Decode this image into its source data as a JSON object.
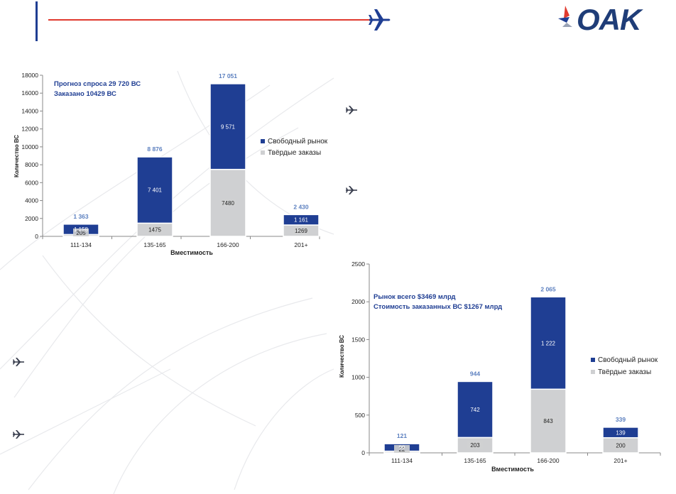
{
  "header": {
    "logo_text": "OAK"
  },
  "colors": {
    "free_market": "#1f3e93",
    "firm_orders": "#cfd0d2",
    "accent_line": "#e03a2e",
    "total_label": "#5b7fbf",
    "annotation": "#1f3e93",
    "plane": "#1f3e93"
  },
  "icons": [
    "airplane-icon",
    "oak-logo-icon",
    "bullet-airplane-icon"
  ],
  "chart_data": [
    {
      "type": "bar",
      "stacked": true,
      "categories": [
        "111-134",
        "135-165",
        "166-200",
        "201+"
      ],
      "series": [
        {
          "name": "Твёрдые заказы",
          "values": [
            205,
            1475,
            7480,
            1269
          ],
          "labels": [
            "205",
            "1475",
            "7480",
            "1269"
          ]
        },
        {
          "name": "Свободный рынок",
          "values": [
            1158,
            7401,
            9571,
            1161
          ],
          "labels": [
            "1 158",
            "7 401",
            "9 571",
            "1 161"
          ]
        }
      ],
      "totals": [
        "1 363",
        "8 876",
        "17 051",
        "2 430"
      ],
      "annotation": [
        "Прогноз спроса  29 720 ВС",
        "Заказано  10429 ВС"
      ],
      "xlabel": "Вместимость",
      "ylabel": "Количество ВС",
      "ylim": [
        0,
        18000
      ],
      "yticks": [
        0,
        2000,
        4000,
        6000,
        8000,
        10000,
        12000,
        14000,
        16000,
        18000
      ],
      "legend": [
        "Свободный рынок",
        "Твёрдые заказы"
      ],
      "legend_position": "right",
      "grid": false
    },
    {
      "type": "bar",
      "stacked": true,
      "categories": [
        "111-134",
        "135-165",
        "166-200",
        "201+"
      ],
      "series": [
        {
          "name": "Твёрдые заказы",
          "values": [
            22,
            203,
            843,
            200
          ],
          "labels": [
            "22",
            "203",
            "843",
            "200"
          ]
        },
        {
          "name": "Свободный рынок",
          "values": [
            99,
            742,
            1222,
            139
          ],
          "labels": [
            "99",
            "742",
            "1 222",
            "139"
          ]
        }
      ],
      "totals": [
        "121",
        "944",
        "2 065",
        "339"
      ],
      "annotation": [
        "Рынок всего $3469 млрд",
        "Стоимость заказанных ВС  $1267 млрд"
      ],
      "xlabel": "Вместимость",
      "ylabel": "Количество ВС",
      "ylim": [
        0,
        2500
      ],
      "yticks": [
        0,
        500,
        1000,
        1500,
        2000,
        2500
      ],
      "legend": [
        "Свободный рынок",
        "Твёрдые заказы"
      ],
      "legend_position": "right",
      "grid": false
    }
  ]
}
